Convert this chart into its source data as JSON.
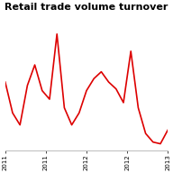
{
  "title": "Retail trade volume turnover",
  "title_fontsize": 8,
  "line_color": "#dd0000",
  "background_color": "#ffffff",
  "grid_color": "#aaaaaa",
  "x_tick_labels": [
    "2011",
    "2011",
    "2012",
    "2012",
    "2013"
  ],
  "values": [
    4.0,
    2.2,
    1.5,
    3.8,
    5.0,
    3.5,
    3.0,
    6.8,
    2.5,
    1.5,
    2.2,
    3.5,
    4.2,
    4.6,
    4.0,
    3.6,
    2.8,
    5.8,
    2.5,
    1.0,
    0.5,
    0.4,
    1.2
  ],
  "ylim_min": 0.0,
  "ylim_max": 8.0,
  "line_width": 1.2,
  "n_grid_lines": 6,
  "border_color": "#bbbbbb"
}
